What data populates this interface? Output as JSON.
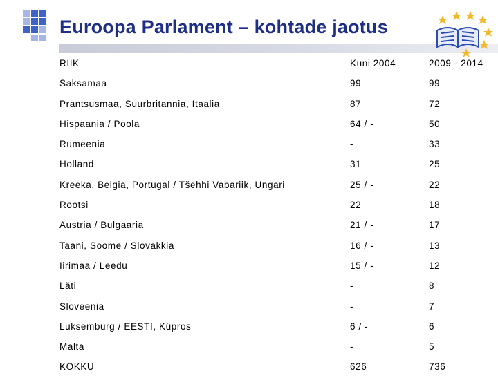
{
  "header": {
    "title": "Euroopa Parlament – kohtade jaotus"
  },
  "colors": {
    "title": "#1f2f86",
    "logo_primary": "#3e62c8",
    "logo_secondary": "#a8b6e6",
    "stars": "#f2b92a"
  },
  "table": {
    "headers": {
      "country": "RIIK",
      "y2004": "Kuni 2004",
      "y2014": "2009 - 2014"
    },
    "rows": [
      {
        "country": "Saksamaa",
        "y2004": "99",
        "y2014": "99"
      },
      {
        "country": "Prantsusmaa, Suurbritannia, Itaalia",
        "y2004": "87",
        "y2014": "72"
      },
      {
        "country": "Hispaania / Poola",
        "y2004": "64 / -",
        "y2014": "50"
      },
      {
        "country": "Rumeenia",
        "y2004": "-",
        "y2014": "33"
      },
      {
        "country": "Holland",
        "y2004": "31",
        "y2014": "25"
      },
      {
        "country": "Kreeka, Belgia, Portugal / Tšehhi Vabariik, Ungari",
        "y2004": "25 / -",
        "y2014": "22"
      },
      {
        "country": "Rootsi",
        "y2004": "22",
        "y2014": "18"
      },
      {
        "country": "Austria / Bulgaaria",
        "y2004": "21 / -",
        "y2014": "17"
      },
      {
        "country": "Taani, Soome / Slovakkia",
        "y2004": "16 / -",
        "y2014": "13"
      },
      {
        "country": "Iirimaa / Leedu",
        "y2004": "15 / -",
        "y2014": "12"
      },
      {
        "country": "Läti",
        "y2004": "-",
        "y2014": "8"
      },
      {
        "country": "Sloveenia",
        "y2004": "-",
        "y2014": "7"
      },
      {
        "country": "Luksemburg / EESTI, Küpros",
        "y2004": "6 / -",
        "y2014": "6"
      },
      {
        "country": "Malta",
        "y2004": "-",
        "y2014": "5"
      },
      {
        "country": "KOKKU",
        "y2004": "626",
        "y2014": "736"
      }
    ]
  },
  "icons": {
    "logo": "square-grid-logo-icon",
    "emblem": "eu-stars-book-icon"
  }
}
